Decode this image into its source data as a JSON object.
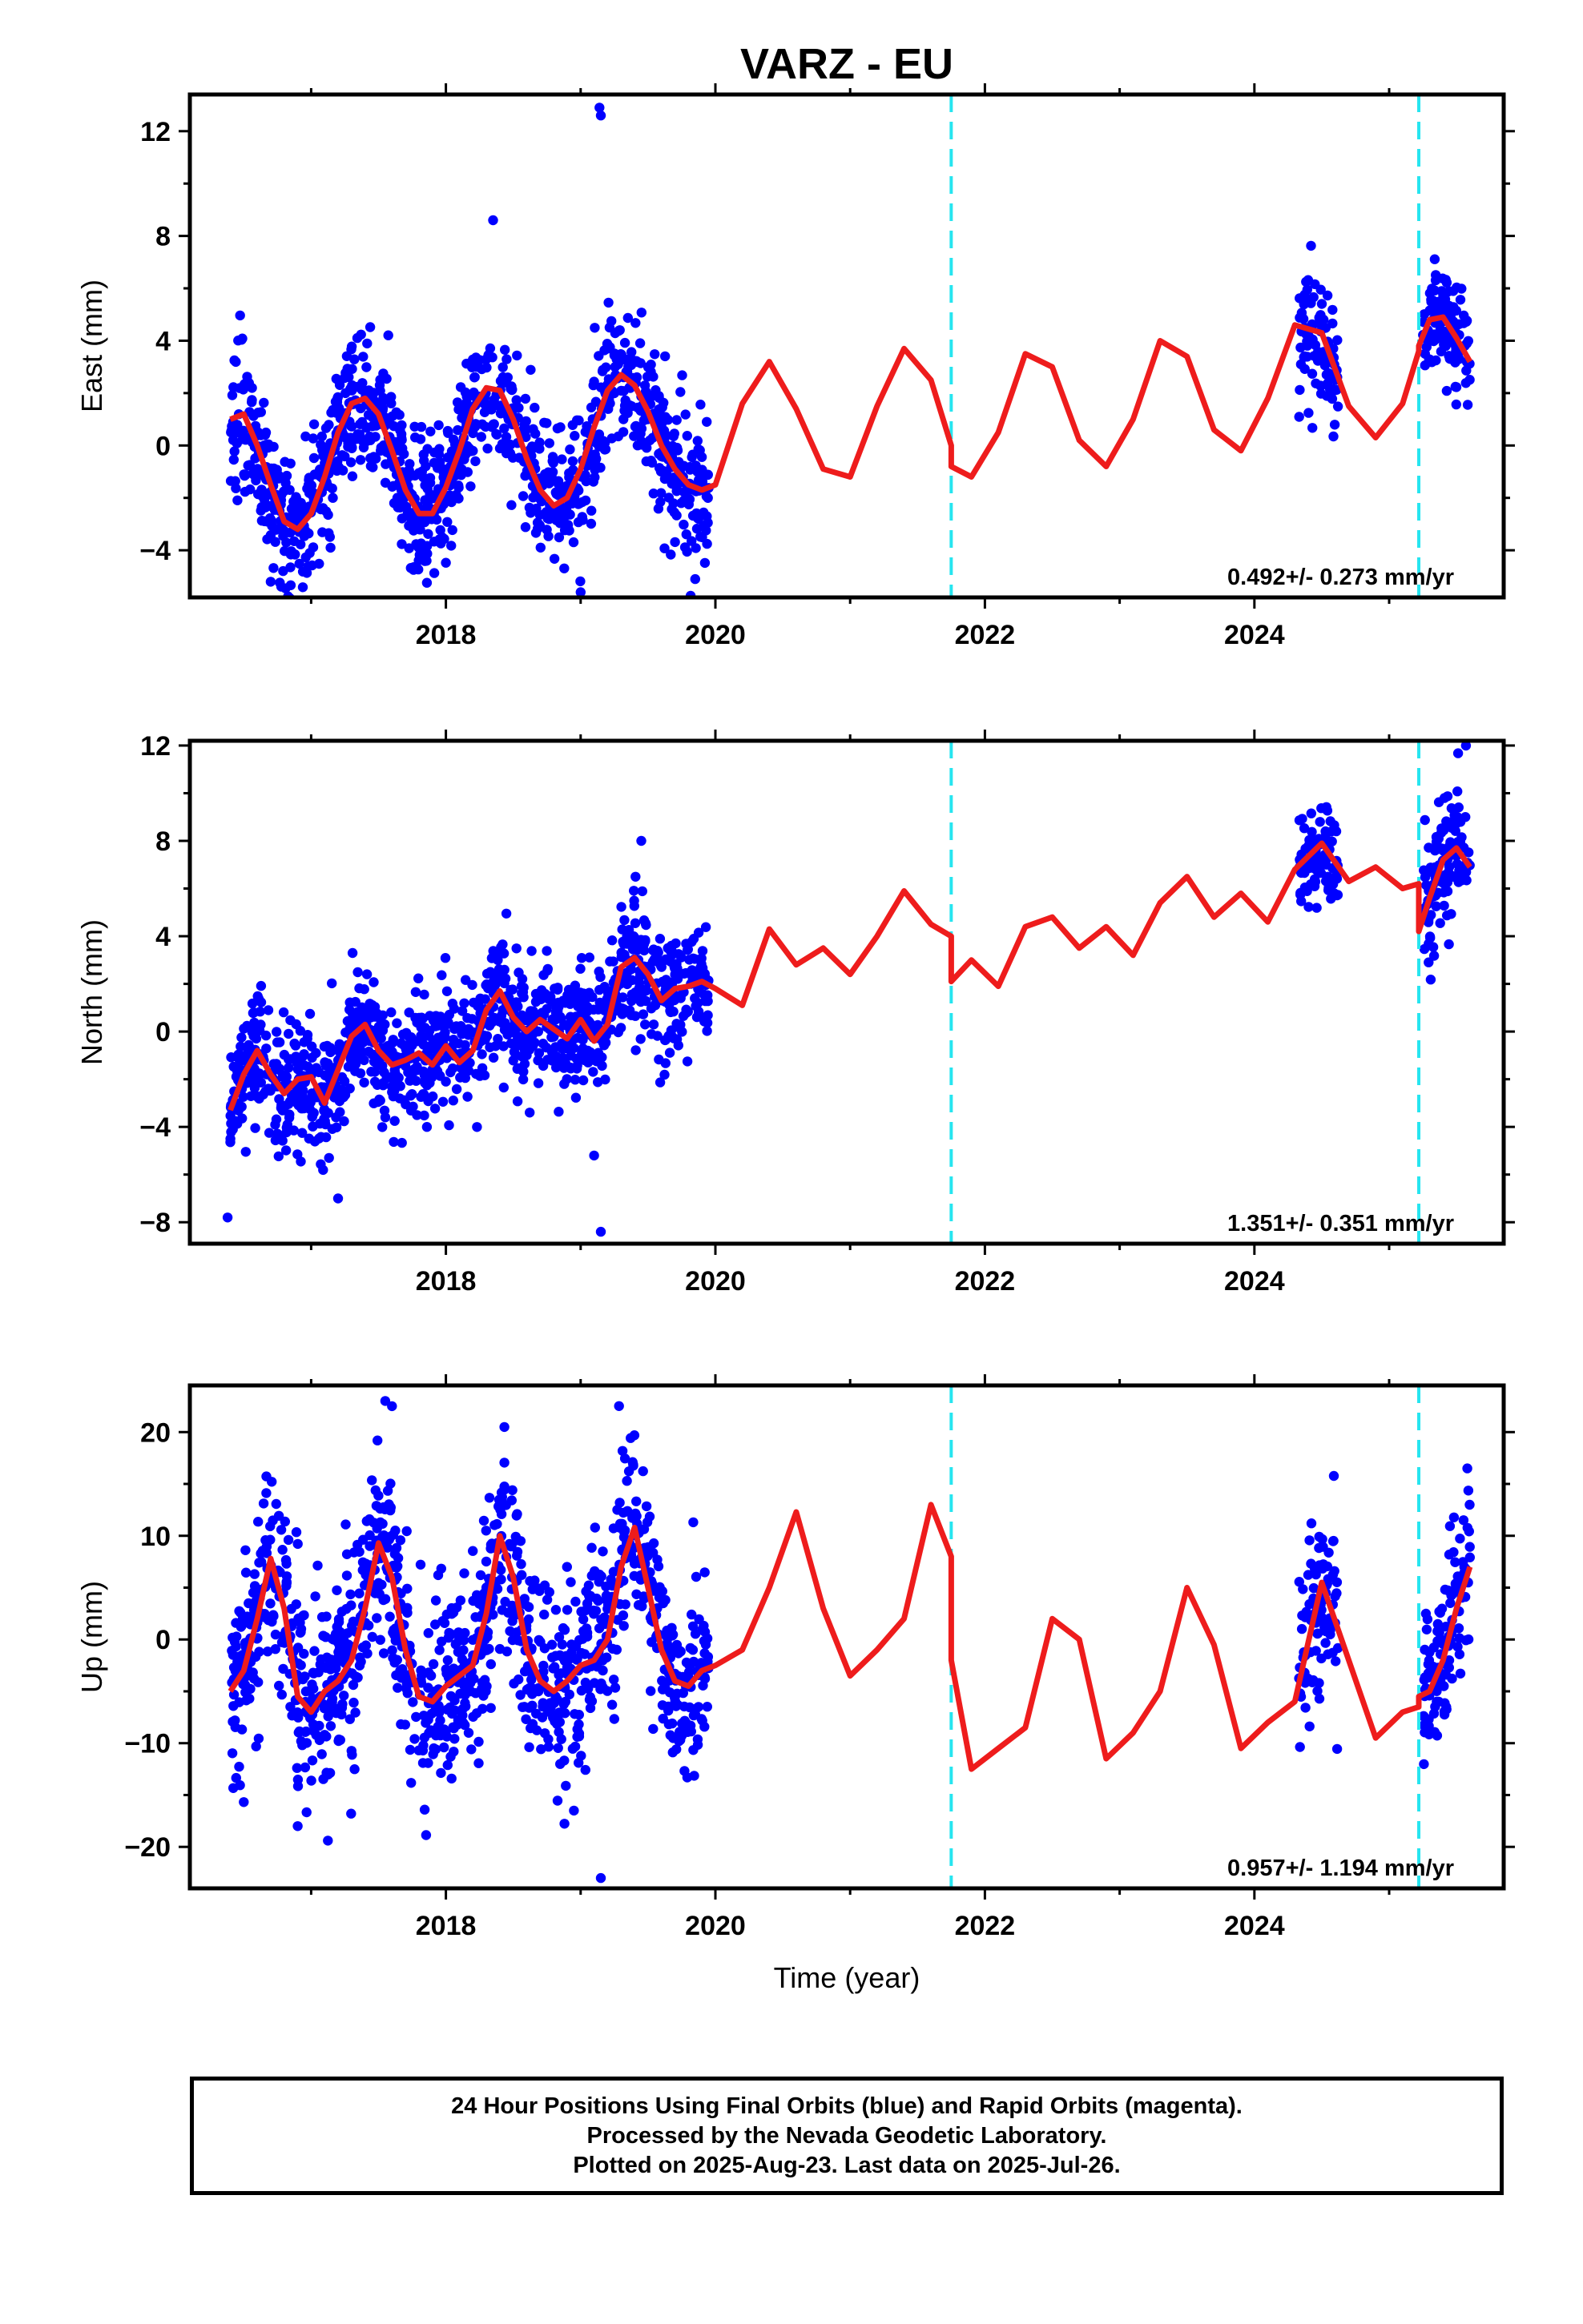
{
  "title": "VARZ - EU",
  "colors": {
    "points": "#0000ff",
    "model": "#ee1c1c",
    "offsets": "#26e5f0"
  },
  "chart_data": [
    {
      "type": "scatter",
      "name": "east",
      "title": "",
      "xlabel": "",
      "ylabel": "East (mm)",
      "xlim": [
        2016.1,
        2025.85
      ],
      "ylim": [
        -5.8,
        13.4
      ],
      "x_ticks": [
        2018,
        2020,
        2022,
        2024
      ],
      "y_ticks": [
        -4,
        0,
        4,
        8,
        12
      ],
      "rate_text": "0.492+/- 0.273 mm/yr",
      "offsets": [
        2021.75,
        2025.22
      ],
      "series": [
        {
          "role": "model",
          "segments": [
            {
              "x": [
                2016.4,
                2016.5,
                2016.6,
                2016.7,
                2016.8,
                2016.9,
                2017.0,
                2017.1,
                2017.2,
                2017.3,
                2017.4,
                2017.5,
                2017.6,
                2017.7,
                2017.8,
                2017.9,
                2018.0,
                2018.1,
                2018.2,
                2018.3,
                2018.4,
                2018.5,
                2018.6,
                2018.7,
                2018.8,
                2018.9,
                2019.0,
                2019.1,
                2019.2,
                2019.3,
                2019.4,
                2019.5,
                2019.6,
                2019.7,
                2019.8,
                2019.9,
                2020.0,
                2020.2,
                2020.4,
                2020.6,
                2020.8,
                2021.0,
                2021.2,
                2021.4,
                2021.6,
                2021.75
              ],
              "y": [
                1.0,
                1.2,
                0.0,
                -1.5,
                -2.9,
                -3.2,
                -2.6,
                -1.2,
                0.5,
                1.6,
                1.8,
                1.2,
                -0.2,
                -1.7,
                -2.6,
                -2.6,
                -1.6,
                -0.2,
                1.4,
                2.2,
                2.1,
                1.0,
                -0.5,
                -1.7,
                -2.3,
                -2.0,
                -0.9,
                0.7,
                2.1,
                2.7,
                2.3,
                1.3,
                0.0,
                -0.9,
                -1.5,
                -1.7,
                -1.5,
                1.6,
                3.2,
                1.4,
                -0.9,
                -1.2,
                1.5,
                3.7,
                2.5,
                0.0
              ]
            },
            {
              "x": [
                2021.75,
                2021.9,
                2022.1,
                2022.3,
                2022.5,
                2022.7,
                2022.9,
                2023.1,
                2023.3,
                2023.5,
                2023.7,
                2023.9,
                2024.1,
                2024.3,
                2024.5,
                2024.7,
                2024.9,
                2025.1,
                2025.22
              ],
              "y": [
                -0.8,
                -1.2,
                0.5,
                3.5,
                3.0,
                0.2,
                -0.8,
                1.0,
                4.0,
                3.4,
                0.6,
                -0.2,
                1.8,
                4.6,
                4.3,
                1.5,
                0.3,
                1.6,
                3.6
              ]
            },
            {
              "x": [
                2025.22,
                2025.3,
                2025.4,
                2025.5,
                2025.6
              ],
              "y": [
                3.8,
                4.8,
                4.9,
                4.1,
                3.2
              ]
            }
          ]
        },
        {
          "role": "points",
          "density": 95,
          "clusters": [
            {
              "x_range": [
                2016.35,
                2019.95
              ],
              "sigma": 1.35
            },
            {
              "x_range": [
                2024.33,
                2024.62
              ],
              "sigma": 1.25
            },
            {
              "x_range": [
                2025.25,
                2025.6
              ],
              "sigma": 1.1
            }
          ],
          "extras": [
            [
              2019.15,
              12.6
            ],
            [
              2019.14,
              12.9
            ],
            [
              2018.35,
              8.6
            ],
            [
              2016.7,
              -5.2
            ],
            [
              2019.0,
              -5.6
            ],
            [
              2019.85,
              -5.1
            ]
          ]
        }
      ]
    },
    {
      "type": "scatter",
      "name": "north",
      "title": "",
      "xlabel": "",
      "ylabel": "North (mm)",
      "xlim": [
        2016.1,
        2025.85
      ],
      "ylim": [
        -8.9,
        12.2
      ],
      "x_ticks": [
        2018,
        2020,
        2022,
        2024
      ],
      "y_ticks": [
        -8,
        -4,
        0,
        4,
        8,
        12
      ],
      "rate_text": "1.351+/- 0.351 mm/yr",
      "offsets": [
        2021.75,
        2025.22
      ],
      "series": [
        {
          "role": "model",
          "segments": [
            {
              "x": [
                2016.4,
                2016.5,
                2016.6,
                2016.7,
                2016.8,
                2016.9,
                2017.0,
                2017.1,
                2017.2,
                2017.3,
                2017.4,
                2017.5,
                2017.6,
                2017.7,
                2017.8,
                2017.9,
                2018.0,
                2018.1,
                2018.2,
                2018.3,
                2018.4,
                2018.5,
                2018.6,
                2018.7,
                2018.8,
                2018.9,
                2019.0,
                2019.1,
                2019.2,
                2019.3,
                2019.4,
                2019.5,
                2019.6,
                2019.7,
                2019.8,
                2019.9,
                2020.0,
                2020.2,
                2020.4,
                2020.6,
                2020.8,
                2021.0,
                2021.2,
                2021.4,
                2021.6,
                2021.75
              ],
              "y": [
                -3.3,
                -1.8,
                -0.8,
                -1.8,
                -2.6,
                -2.0,
                -1.9,
                -3.0,
                -1.6,
                -0.2,
                0.3,
                -0.8,
                -1.4,
                -1.2,
                -0.9,
                -1.4,
                -0.6,
                -1.3,
                -0.8,
                0.9,
                1.7,
                0.6,
                0.0,
                0.5,
                0.1,
                -0.3,
                0.5,
                -0.4,
                0.3,
                2.7,
                3.1,
                2.4,
                1.3,
                1.8,
                1.9,
                2.1,
                1.8,
                1.1,
                4.3,
                2.8,
                3.5,
                2.4,
                4.0,
                5.9,
                4.5,
                4.0
              ]
            },
            {
              "x": [
                2021.75,
                2021.9,
                2022.1,
                2022.3,
                2022.5,
                2022.7,
                2022.9,
                2023.1,
                2023.3,
                2023.5,
                2023.7,
                2023.9,
                2024.1,
                2024.3,
                2024.5,
                2024.7,
                2024.9,
                2025.1,
                2025.22
              ],
              "y": [
                2.1,
                3.0,
                1.9,
                4.4,
                4.8,
                3.5,
                4.4,
                3.2,
                5.4,
                6.5,
                4.8,
                5.8,
                4.6,
                6.8,
                7.9,
                6.3,
                6.9,
                6.0,
                6.2
              ]
            },
            {
              "x": [
                2025.22,
                2025.3,
                2025.4,
                2025.5,
                2025.6
              ],
              "y": [
                4.2,
                5.6,
                7.2,
                7.7,
                6.9
              ]
            }
          ]
        },
        {
          "role": "points",
          "density": 95,
          "clusters": [
            {
              "x_range": [
                2016.35,
                2019.95
              ],
              "sigma": 1.3
            },
            {
              "x_range": [
                2024.33,
                2024.62
              ],
              "sigma": 1.1
            },
            {
              "x_range": [
                2025.25,
                2025.6
              ],
              "sigma": 1.4
            }
          ],
          "extras": [
            [
              2016.38,
              -7.8
            ],
            [
              2017.2,
              -7.0
            ],
            [
              2019.15,
              -8.4
            ],
            [
              2019.1,
              -5.2
            ],
            [
              2019.45,
              8.0
            ],
            [
              2025.57,
              12.0
            ]
          ]
        }
      ]
    },
    {
      "type": "scatter",
      "name": "up",
      "title": "",
      "xlabel": "Time (year)",
      "ylabel": "Up (mm)",
      "xlim": [
        2016.1,
        2025.85
      ],
      "ylim": [
        -24,
        24.5
      ],
      "x_ticks": [
        2018,
        2020,
        2022,
        2024
      ],
      "y_ticks": [
        -20,
        -10,
        0,
        10,
        20
      ],
      "rate_text": "0.957+/- 1.194 mm/yr",
      "offsets": [
        2021.75,
        2025.22
      ],
      "series": [
        {
          "role": "model",
          "segments": [
            {
              "x": [
                2016.4,
                2016.5,
                2016.6,
                2016.7,
                2016.8,
                2016.9,
                2017.0,
                2017.1,
                2017.2,
                2017.3,
                2017.4,
                2017.5,
                2017.6,
                2017.7,
                2017.8,
                2017.9,
                2018.0,
                2018.1,
                2018.2,
                2018.3,
                2018.4,
                2018.5,
                2018.6,
                2018.7,
                2018.8,
                2018.9,
                2019.0,
                2019.1,
                2019.2,
                2019.3,
                2019.4,
                2019.5,
                2019.6,
                2019.7,
                2019.8,
                2019.9,
                2020.0,
                2020.2,
                2020.4,
                2020.6,
                2020.8,
                2021.0,
                2021.2,
                2021.4,
                2021.6,
                2021.75
              ],
              "y": [
                -5.0,
                -3.0,
                2.0,
                7.8,
                3.0,
                -5.5,
                -7.0,
                -5.0,
                -4.0,
                -2.0,
                3.0,
                9.3,
                6.0,
                -1.0,
                -5.5,
                -6.0,
                -4.5,
                -3.5,
                -2.5,
                2.5,
                10.0,
                6.0,
                -1.0,
                -4.0,
                -5.0,
                -4.0,
                -2.5,
                -2.0,
                0.0,
                7.0,
                10.8,
                5.0,
                -1.0,
                -4.0,
                -4.5,
                -3.0,
                -2.5,
                -1.0,
                5.0,
                12.3,
                3.0,
                -3.5,
                -1.0,
                2.0,
                13.0,
                8.0
              ]
            },
            {
              "x": [
                2021.75,
                2021.9,
                2022.1,
                2022.3,
                2022.5,
                2022.7,
                2022.9,
                2023.1,
                2023.3,
                2023.5,
                2023.7,
                2023.9,
                2024.1,
                2024.3,
                2024.5,
                2024.7,
                2024.9,
                2025.1,
                2025.22
              ],
              "y": [
                -2.0,
                -12.5,
                -10.5,
                -8.5,
                2.0,
                0.0,
                -11.5,
                -9.0,
                -5.0,
                5.0,
                -0.5,
                -10.5,
                -8.0,
                -6.0,
                5.5,
                -2.0,
                -9.5,
                -7.0,
                -6.5
              ]
            },
            {
              "x": [
                2025.22,
                2025.3,
                2025.4,
                2025.5,
                2025.6
              ],
              "y": [
                -5.5,
                -5.0,
                -2.0,
                3.0,
                7.0
              ]
            }
          ]
        },
        {
          "role": "points",
          "density": 95,
          "clusters": [
            {
              "x_range": [
                2016.35,
                2019.95
              ],
              "sigma": 4.8
            },
            {
              "x_range": [
                2024.33,
                2024.62
              ],
              "sigma": 4.0
            },
            {
              "x_range": [
                2025.25,
                2025.6
              ],
              "sigma": 4.2
            }
          ],
          "extras": [
            [
              2019.15,
              -23.0
            ],
            [
              2017.55,
              23.0
            ],
            [
              2017.6,
              22.5
            ],
            [
              2016.9,
              -18.0
            ],
            [
              2018.95,
              -16.5
            ],
            [
              2025.58,
              16.5
            ]
          ]
        }
      ]
    }
  ],
  "footer": {
    "line1": "24 Hour Positions Using Final Orbits (blue) and Rapid Orbits (magenta).",
    "line2": "Processed by the Nevada Geodetic Laboratory.",
    "line3": "Plotted on 2025-Aug-23. Last data on 2025-Jul-26."
  }
}
